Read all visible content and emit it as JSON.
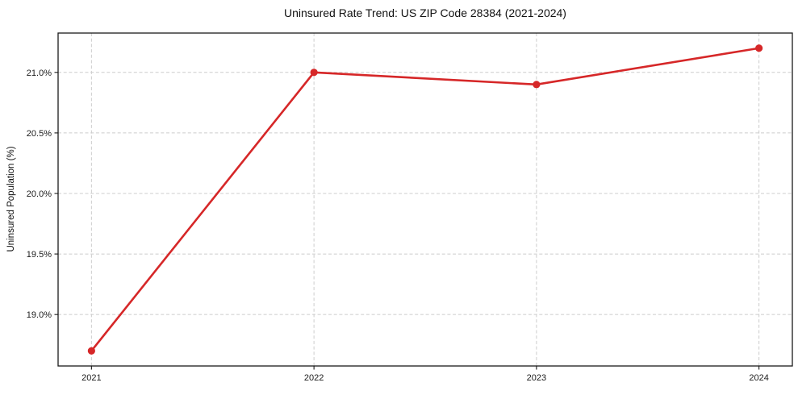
{
  "chart_data": {
    "type": "line",
    "title": "Uninsured Rate Trend: US ZIP Code 28384 (2021-2024)",
    "xlabel": "",
    "ylabel": "Uninsured Population (%)",
    "x": [
      2021,
      2022,
      2023,
      2024
    ],
    "xtick_labels": [
      "2021",
      "2022",
      "2023",
      "2024"
    ],
    "values": [
      18.7,
      21.0,
      20.9,
      21.2
    ],
    "yticks": [
      19.0,
      19.5,
      20.0,
      20.5,
      21.0
    ],
    "ytick_labels": [
      "19.0%",
      "19.5%",
      "20.0%",
      "20.5%",
      "21.0%"
    ],
    "ylim": [
      18.575,
      21.325
    ],
    "xlim": [
      2020.85,
      2024.15
    ],
    "grid": true,
    "grid_style": "dashed",
    "legend": "none",
    "line_color": "#d62728",
    "marker": "circle",
    "grid_color": "#cccccc",
    "axis_color": "#1a1a1a",
    "background_color": "#ffffff"
  }
}
